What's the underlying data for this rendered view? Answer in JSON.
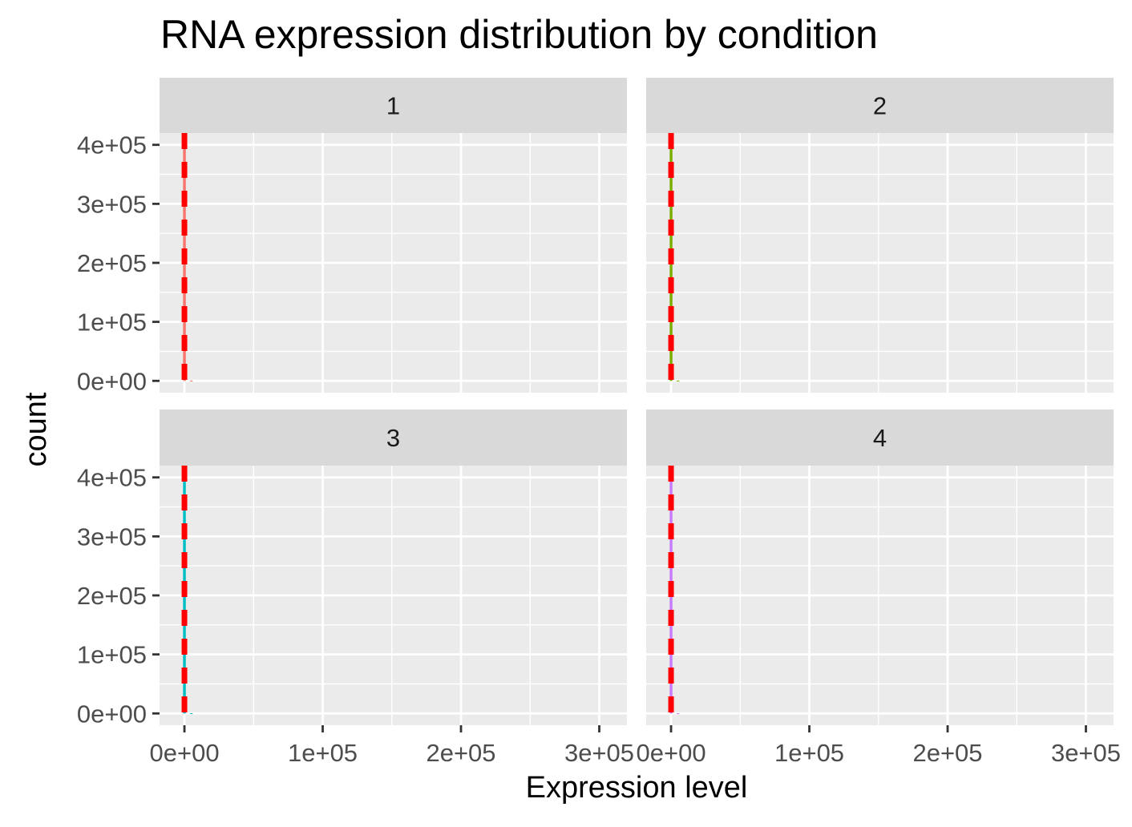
{
  "chart_data": {
    "type": "histogram",
    "title": "RNA expression distribution by condition",
    "xlabel": "Expression level",
    "ylabel": "count",
    "xlim": [
      -18000,
      320000
    ],
    "ylim": [
      -20000,
      420000
    ],
    "x_ticks": [
      0,
      100000,
      200000,
      300000
    ],
    "x_tick_labels": [
      "0e+00",
      "1e+05",
      "2e+05",
      "3e+05"
    ],
    "x_minor_ticks": [
      50000,
      150000,
      250000
    ],
    "y_ticks": [
      0,
      100000,
      200000,
      300000,
      400000
    ],
    "y_tick_labels": [
      "0e+00",
      "1e+05",
      "2e+05",
      "3e+05",
      "4e+05"
    ],
    "y_minor_ticks": [
      50000,
      150000,
      250000,
      350000
    ],
    "grid": true,
    "reference_line": {
      "x": 0,
      "color": "#FF0000",
      "style": "dashed"
    },
    "facets": [
      {
        "label": "1",
        "color": "#F8766D",
        "bins": [
          {
            "x": 0,
            "count": 400000
          },
          {
            "x": 5000,
            "count": 300
          }
        ]
      },
      {
        "label": "2",
        "color": "#7CAE00",
        "bins": [
          {
            "x": 0,
            "count": 400000
          },
          {
            "x": 5000,
            "count": 300
          }
        ]
      },
      {
        "label": "3",
        "color": "#00BFC4",
        "bins": [
          {
            "x": 0,
            "count": 400000
          },
          {
            "x": 5000,
            "count": 300
          }
        ]
      },
      {
        "label": "4",
        "color": "#C77CFF",
        "bins": [
          {
            "x": 0,
            "count": 400000
          },
          {
            "x": 5000,
            "count": 300
          }
        ]
      }
    ]
  }
}
